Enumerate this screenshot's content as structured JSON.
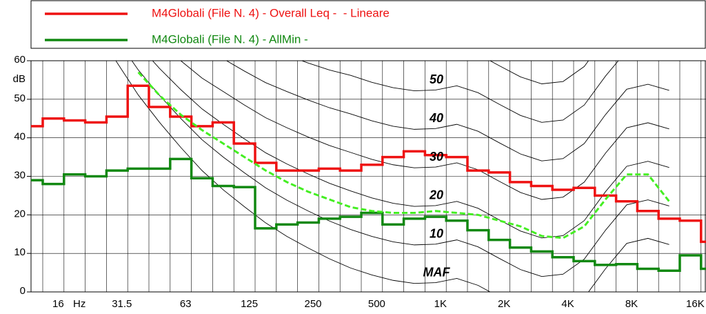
{
  "chart_data": {
    "type": "step",
    "ylabel": "dB",
    "ylim": [
      0,
      60
    ],
    "yticks": [
      0,
      10,
      20,
      30,
      40,
      50,
      60
    ],
    "grid": true,
    "categories": [
      null,
      "16",
      "Hz",
      null,
      "31.5",
      null,
      null,
      "63",
      null,
      null,
      "125",
      null,
      null,
      "250",
      null,
      null,
      "500",
      null,
      null,
      "1K",
      null,
      null,
      "2K",
      null,
      null,
      "4K",
      null,
      null,
      "8K",
      null,
      null,
      "16K",
      null
    ],
    "series": [
      {
        "name": "M4Globali (File N. 4) - Overall Leq -  - Lineare",
        "color": "#ee1111",
        "values": [
          43,
          45,
          44.5,
          44,
          45.5,
          53.5,
          48,
          45.5,
          43,
          44,
          38.5,
          33.5,
          31.5,
          31.5,
          32,
          31.5,
          33,
          35,
          36.5,
          35.5,
          35,
          31.5,
          31,
          28.5,
          27.5,
          26.5,
          27,
          25,
          23.5,
          21,
          19,
          18.5,
          13
        ]
      },
      {
        "name": "M4Globali (File N. 4) - AllMin -",
        "color": "#118811",
        "values": [
          29,
          28,
          30.5,
          30,
          31.5,
          32,
          32,
          34.5,
          29.5,
          27.5,
          27.2,
          16.5,
          17.5,
          18,
          19,
          19.5,
          20.5,
          17.5,
          19,
          19.5,
          18.5,
          16,
          13.5,
          11.5,
          10.5,
          9,
          8,
          7,
          7.2,
          6,
          5.5,
          9.5,
          6
        ]
      }
    ],
    "threshold": {
      "color": "#44ee22",
      "values": [
        null,
        null,
        null,
        null,
        null,
        57,
        51,
        46,
        42,
        38.5,
        35,
        31.5,
        28.5,
        26,
        24,
        22,
        21,
        20.5,
        20.5,
        21,
        20.5,
        20,
        18.5,
        17,
        14.5,
        14,
        17,
        24,
        30.5,
        30.5,
        23.5,
        null,
        null
      ]
    },
    "contours": [
      {
        "label": "MAF",
        "values": [
          null,
          null,
          78.5,
          68.7,
          59.5,
          51.1,
          44,
          37.5,
          31.5,
          26.5,
          22.1,
          17.9,
          14.4,
          11.4,
          8.6,
          6.2,
          4.4,
          3,
          2.2,
          2.4,
          3.5,
          1.7,
          -1.3,
          -4.2,
          -6,
          -5.4,
          -1.5,
          6,
          12.6,
          13.9,
          12.3,
          null,
          null
        ]
      },
      {
        "label": "10",
        "values": [
          null,
          null,
          83.5,
          74.2,
          65.5,
          57.6,
          51,
          45,
          39.5,
          35,
          30.9,
          27,
          23.8,
          21,
          18.4,
          16.2,
          14.4,
          13,
          12.2,
          12.4,
          13.5,
          11.7,
          8.7,
          5.8,
          4,
          4.6,
          8.5,
          16,
          22.6,
          23.9,
          22.3,
          null,
          null
        ]
      },
      {
        "label": "20",
        "values": [
          null,
          null,
          88.5,
          79.7,
          71.5,
          64.1,
          58,
          52.5,
          47.5,
          43.5,
          39.7,
          36.1,
          33.2,
          30.6,
          28.2,
          26.2,
          24.4,
          23,
          22.2,
          22.4,
          23.5,
          21.7,
          18.7,
          15.8,
          14,
          14.6,
          18.5,
          26,
          32.6,
          33.9,
          32.3,
          null,
          null
        ]
      },
      {
        "label": "30",
        "values": [
          null,
          null,
          93.5,
          85.2,
          77.5,
          70.6,
          65,
          60,
          55.5,
          52,
          48.5,
          45.2,
          42.6,
          40.2,
          38,
          36.2,
          34.4,
          33,
          32.2,
          32.4,
          33.5,
          31.7,
          28.7,
          25.8,
          24,
          24.6,
          28.5,
          36,
          42.6,
          43.9,
          42.3,
          null,
          null
        ]
      },
      {
        "label": "40",
        "values": [
          null,
          null,
          98.5,
          90.7,
          83.5,
          77.1,
          72,
          67.5,
          63.5,
          60.5,
          57.3,
          54.3,
          52,
          49.8,
          47.8,
          46.2,
          44.4,
          43,
          42.2,
          42.4,
          43.5,
          41.7,
          38.7,
          35.8,
          34,
          34.6,
          38.5,
          46,
          52.6,
          53.9,
          52.3,
          null,
          null
        ]
      },
      {
        "label": "50",
        "values": [
          null,
          null,
          103.5,
          96.2,
          89.5,
          83.6,
          79,
          75,
          71.5,
          69,
          66.1,
          63.4,
          61.4,
          59.4,
          57.6,
          56.2,
          54.4,
          53,
          52.2,
          52.4,
          53.5,
          51.7,
          48.7,
          45.8,
          44,
          44.6,
          48.5,
          56,
          62.6,
          63.9,
          62.3,
          null,
          null
        ]
      },
      {
        "label": null,
        "values": [
          null,
          null,
          108.5,
          101.7,
          95.5,
          90.1,
          86,
          82.5,
          79.5,
          77.5,
          74.9,
          72.5,
          70.8,
          69,
          67.4,
          66.2,
          64.4,
          63,
          62.2,
          62.4,
          63.5,
          61.7,
          58.7,
          55.8,
          54,
          54.6,
          58.5,
          66,
          72.6,
          73.9,
          72.3,
          null,
          null
        ]
      }
    ]
  }
}
